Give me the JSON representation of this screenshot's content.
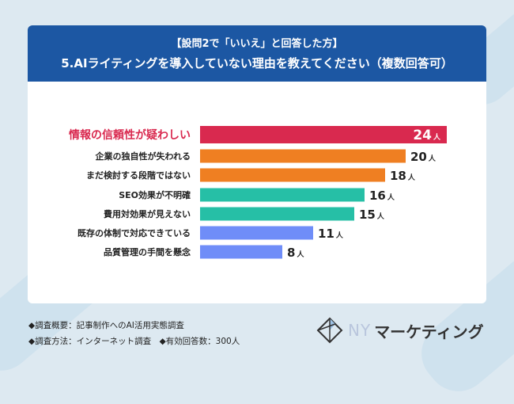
{
  "header": {
    "line1": "【設問2で「いいえ」と回答した方】",
    "line2": "5.AIライティングを導入していない理由を教えてください（複数回答可）"
  },
  "chart_data": {
    "type": "bar",
    "orientation": "horizontal",
    "categories": [
      "情報の信頼性が疑わしい",
      "企業の独自性が失われる",
      "まだ検討する段階ではない",
      "SEO効果が不明確",
      "費用対効果が見えない",
      "既存の体制で対応できている",
      "品質管理の手間を懸念"
    ],
    "values": [
      24,
      20,
      18,
      16,
      15,
      11,
      8
    ],
    "unit": "人",
    "colors": [
      "#d9294f",
      "#ef7f22",
      "#ef7f22",
      "#26bfa6",
      "#26bfa6",
      "#6f8df8",
      "#6f8df8"
    ],
    "highlight_label_color": "#d9294f"
  },
  "footer": {
    "line1": "◆調査概要：記事制作へのAI活用実態調査",
    "line2": "◆調査方法：インターネット調査　◆有効回答数：300人"
  },
  "logo": {
    "ny": "NY",
    "text": "マーケティング"
  }
}
